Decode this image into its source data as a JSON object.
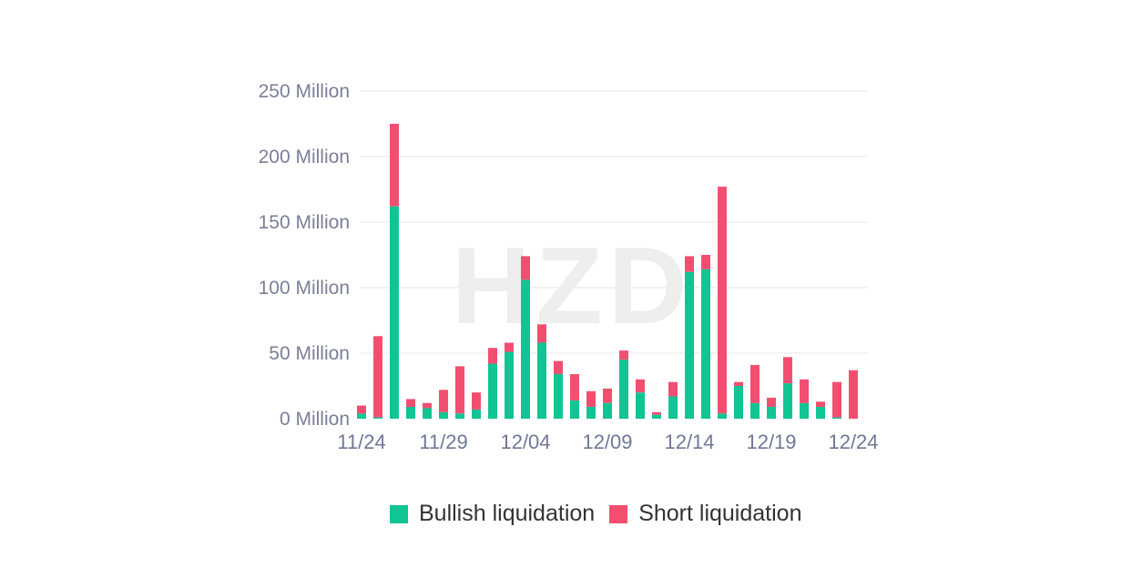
{
  "watermark": "HZD",
  "colors": {
    "bullish": "#10c593",
    "short": "#f24f70"
  },
  "legend": [
    {
      "label": "Bullish liquidation",
      "color": "#10c593"
    },
    {
      "label": "Short liquidation",
      "color": "#f24f70"
    }
  ],
  "chart_data": {
    "type": "bar",
    "stacked": true,
    "title": "",
    "xlabel": "",
    "ylabel": "",
    "ylim": [
      0,
      250
    ],
    "y_ticks": [
      "0 Million",
      "50 Million",
      "100 Million",
      "150 Million",
      "200 Million",
      "250 Million"
    ],
    "x_tick_labels": [
      "11/24",
      "11/29",
      "12/04",
      "12/09",
      "12/14",
      "12/19",
      "12/24"
    ],
    "categories": [
      "11/24",
      "11/25",
      "11/26",
      "11/27",
      "11/28",
      "11/29",
      "11/30",
      "12/01",
      "12/02",
      "12/03",
      "12/04",
      "12/05",
      "12/06",
      "12/07",
      "12/08",
      "12/09",
      "12/10",
      "12/11",
      "12/12",
      "12/13",
      "12/14",
      "12/15",
      "12/16",
      "12/17",
      "12/18",
      "12/19",
      "12/20",
      "12/21",
      "12/22",
      "12/23",
      "12/24"
    ],
    "series": [
      {
        "name": "Bullish liquidation",
        "values": [
          4,
          1,
          162,
          9,
          8,
          5,
          4,
          7,
          42,
          51,
          106,
          58,
          34,
          14,
          9,
          12,
          45,
          20,
          3,
          17,
          112,
          114,
          4,
          25,
          12,
          9,
          27,
          12,
          9,
          1,
          0
        ]
      },
      {
        "name": "Short liquidation",
        "values": [
          6,
          62,
          63,
          6,
          4,
          17,
          36,
          13,
          12,
          7,
          18,
          14,
          10,
          20,
          12,
          11,
          7,
          10,
          2,
          11,
          12,
          11,
          173,
          3,
          29,
          7,
          20,
          18,
          4,
          27,
          37
        ]
      }
    ],
    "grid": true,
    "legend_position": "bottom"
  }
}
